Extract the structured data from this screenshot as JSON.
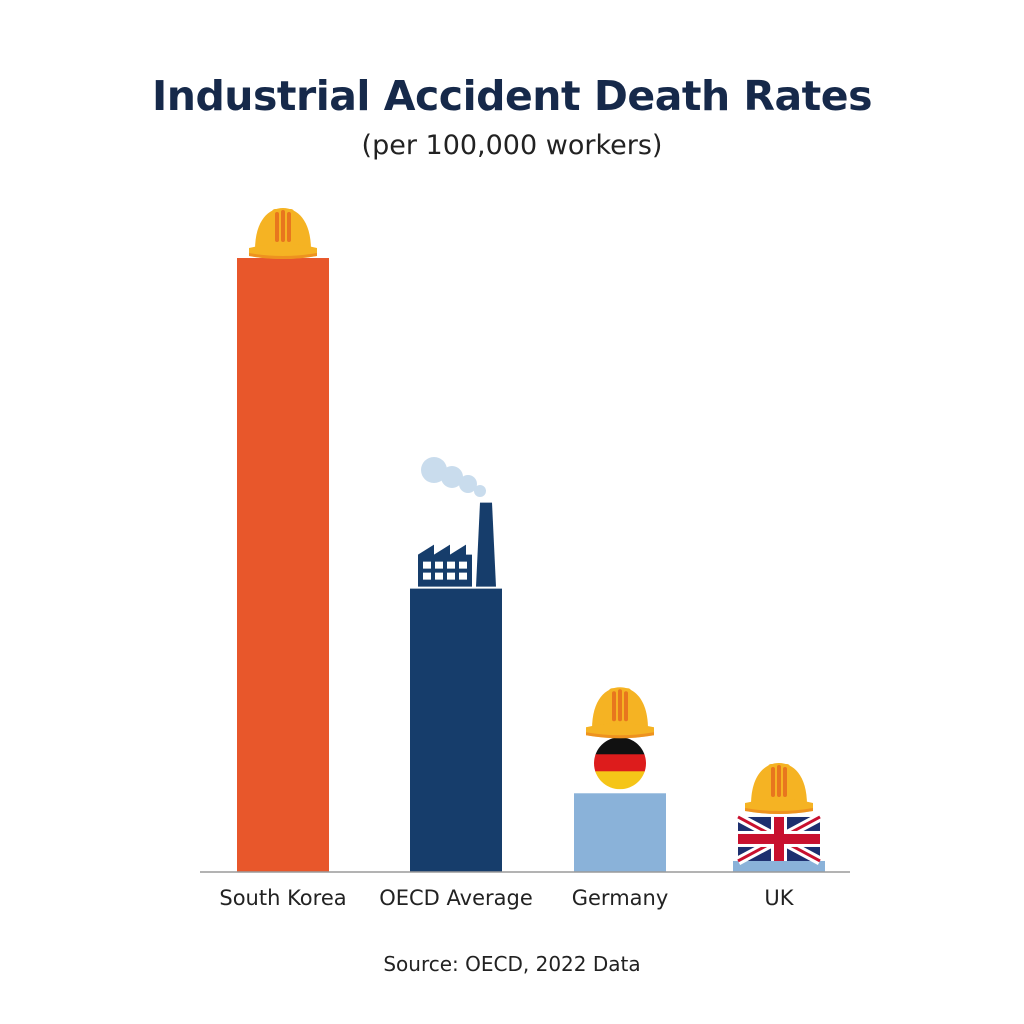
{
  "chart_data": {
    "type": "bar",
    "title": "Industrial Accident Death Rates",
    "subtitle": "(per 100,000 workers)",
    "categories": [
      "South Korea",
      "OECD Average",
      "Germany",
      "UK"
    ],
    "values": [
      3.9,
      1.8,
      0.5,
      0.07
    ],
    "colors": [
      "#e8572b",
      "#163d6b",
      "#8ab2d9",
      "#8ab2d9"
    ],
    "icons": [
      "hard-hat",
      "factory",
      "hard-hat + germany-flag",
      "hard-hat + uk-flag"
    ],
    "ylim": [
      0,
      4
    ],
    "grid": false,
    "legend": "none",
    "xlabel": "",
    "ylabel": "",
    "source": "Source: OECD, 2022 Data"
  },
  "colors": {
    "title": "#16294a",
    "axis": "#9a9a9a",
    "hardhat": "#f5b323",
    "hardhat_stripe": "#e8761e"
  }
}
